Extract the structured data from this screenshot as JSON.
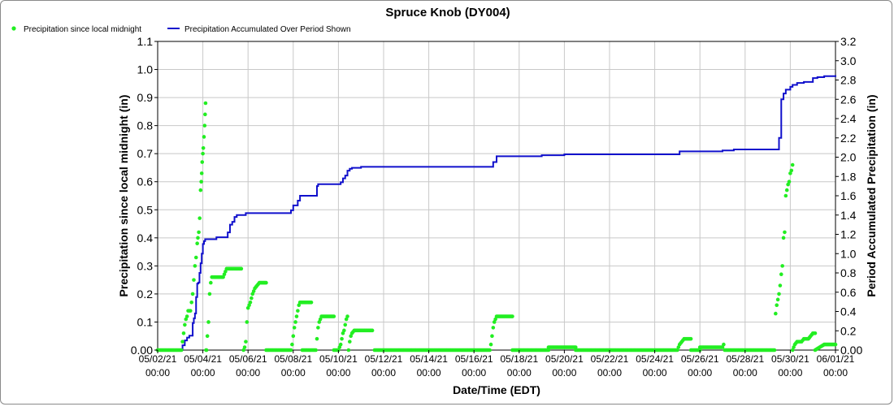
{
  "chart_data": {
    "type": "scatter+line",
    "title": "Spruce Knob (DY004)",
    "xlabel": "Date/Time (EDT)",
    "ylabel_left": "Precipitation since local midnight (in)",
    "ylabel_right": "Period Accumulated Precipitation (in)",
    "x_range": [
      "05/02/21 00:00",
      "06/01/21 00:00"
    ],
    "x_ticks": [
      {
        "line1": "05/02/21",
        "line2": "00:00",
        "day": 0
      },
      {
        "line1": "05/04/21",
        "line2": "00:00",
        "day": 2
      },
      {
        "line1": "05/06/21",
        "line2": "00:00",
        "day": 4
      },
      {
        "line1": "05/08/21",
        "line2": "00:00",
        "day": 6
      },
      {
        "line1": "05/10/21",
        "line2": "00:00",
        "day": 8
      },
      {
        "line1": "05/12/21",
        "line2": "00:00",
        "day": 10
      },
      {
        "line1": "05/14/21",
        "line2": "00:00",
        "day": 12
      },
      {
        "line1": "05/16/21",
        "line2": "00:00",
        "day": 14
      },
      {
        "line1": "05/18/21",
        "line2": "00:00",
        "day": 16
      },
      {
        "line1": "05/20/21",
        "line2": "00:00",
        "day": 18
      },
      {
        "line1": "05/22/21",
        "line2": "00:00",
        "day": 20
      },
      {
        "line1": "05/24/21",
        "line2": "00:00",
        "day": 22
      },
      {
        "line1": "05/26/21",
        "line2": "00:00",
        "day": 24
      },
      {
        "line1": "05/28/21",
        "line2": "00:00",
        "day": 26
      },
      {
        "line1": "05/30/21",
        "line2": "00:00",
        "day": 28
      },
      {
        "line1": "06/01/21",
        "line2": "00:00",
        "day": 30
      }
    ],
    "y_left_range": [
      0,
      1.1
    ],
    "y_left_ticks": [
      "0.00",
      "0.1",
      "0.2",
      "0.3",
      "0.4",
      "0.5",
      "0.6",
      "0.7",
      "0.8",
      "0.9",
      "1.0",
      "1.1"
    ],
    "y_right_range": [
      0,
      3.2
    ],
    "y_right_ticks": [
      "0.00",
      "0.2",
      "0.4",
      "0.6",
      "0.8",
      "1.0",
      "1.2",
      "1.4",
      "1.6",
      "1.8",
      "2.0",
      "2.2",
      "2.4",
      "2.6",
      "2.8",
      "3.0",
      "3.2"
    ],
    "grid": true,
    "legend_position": "top-left",
    "legend": [
      "Precipitation since local midnight",
      "Precipitation Accumulated Over Period Shown"
    ],
    "colors": {
      "daily": "#22ee22",
      "accumulated": "#1010cc"
    },
    "series_daily": {
      "name": "Precipitation since local midnight",
      "axis": "left",
      "segments": [
        [
          [
            0,
            0
          ],
          [
            1.05,
            0
          ],
          [
            1.1,
            0.03
          ],
          [
            1.15,
            0.06
          ],
          [
            1.2,
            0.09
          ],
          [
            1.25,
            0.11
          ],
          [
            1.3,
            0.12
          ],
          [
            1.35,
            0.14
          ],
          [
            1.45,
            0.14
          ],
          [
            1.5,
            0.17
          ],
          [
            1.55,
            0.2
          ],
          [
            1.6,
            0.25
          ],
          [
            1.65,
            0.3
          ],
          [
            1.7,
            0.33
          ],
          [
            1.75,
            0.38
          ],
          [
            1.78,
            0.4
          ],
          [
            1.82,
            0.42
          ],
          [
            1.86,
            0.47
          ],
          [
            1.9,
            0.57
          ],
          [
            1.93,
            0.6
          ],
          [
            1.95,
            0.63
          ],
          [
            1.97,
            0.67
          ],
          [
            2.0,
            0.7
          ],
          [
            2.02,
            0.72
          ],
          [
            2.05,
            0.76
          ],
          [
            2.08,
            0.8
          ],
          [
            2.1,
            0.84
          ],
          [
            2.12,
            0.88
          ],
          [
            2.14,
            0.0
          ]
        ],
        [
          [
            2.16,
            0.0
          ],
          [
            2.2,
            0.05
          ],
          [
            2.25,
            0.1
          ],
          [
            2.3,
            0.2
          ],
          [
            2.35,
            0.24
          ],
          [
            2.4,
            0.26
          ],
          [
            2.9,
            0.26
          ]
        ],
        [
          [
            2.95,
            0.27
          ],
          [
            3.05,
            0.29
          ],
          [
            3.7,
            0.29
          ]
        ],
        [
          [
            3.8,
            0
          ],
          [
            3.85,
            0.01
          ],
          [
            3.9,
            0.03
          ],
          [
            3.95,
            0.1
          ],
          [
            4.0,
            0.15
          ],
          [
            4.05,
            0.16
          ],
          [
            4.1,
            0.17
          ],
          [
            4.2,
            0.2
          ],
          [
            4.3,
            0.22
          ],
          [
            4.4,
            0.23
          ],
          [
            4.5,
            0.24
          ],
          [
            4.8,
            0.24
          ]
        ],
        [
          [
            4.8,
            0
          ],
          [
            5.9,
            0
          ],
          [
            5.95,
            0.02
          ],
          [
            6.0,
            0.05
          ],
          [
            6.05,
            0.08
          ],
          [
            6.1,
            0.1
          ],
          [
            6.15,
            0.12
          ],
          [
            6.2,
            0.14
          ],
          [
            6.25,
            0.16
          ],
          [
            6.3,
            0.17
          ],
          [
            6.8,
            0.17
          ]
        ],
        [
          [
            6.4,
            0
          ],
          [
            7.0,
            0
          ],
          [
            7.05,
            0.04
          ],
          [
            7.1,
            0.08
          ],
          [
            7.15,
            0.1
          ],
          [
            7.2,
            0.11
          ],
          [
            7.25,
            0.12
          ],
          [
            7.8,
            0.12
          ]
        ],
        [
          [
            7.8,
            0
          ],
          [
            8.0,
            0
          ],
          [
            8.05,
            0.01
          ],
          [
            8.1,
            0.02
          ],
          [
            8.15,
            0.04
          ],
          [
            8.2,
            0.06
          ],
          [
            8.25,
            0.07
          ],
          [
            8.3,
            0.09
          ],
          [
            8.35,
            0.11
          ],
          [
            8.4,
            0.12
          ],
          [
            8.45,
            0.0
          ]
        ],
        [
          [
            8.5,
            0.03
          ],
          [
            8.55,
            0.05
          ],
          [
            8.6,
            0.06
          ],
          [
            8.7,
            0.07
          ],
          [
            9.5,
            0.07
          ]
        ],
        [
          [
            9.6,
            0
          ],
          [
            14.7,
            0
          ],
          [
            14.75,
            0.02
          ],
          [
            14.8,
            0.05
          ],
          [
            14.85,
            0.08
          ],
          [
            14.9,
            0.1
          ],
          [
            14.95,
            0.11
          ],
          [
            15.0,
            0.12
          ],
          [
            15.7,
            0.12
          ]
        ],
        [
          [
            15.7,
            0
          ],
          [
            17.3,
            0
          ],
          [
            17.3,
            0.01
          ],
          [
            18.5,
            0.01
          ],
          [
            18.5,
            0
          ],
          [
            23.0,
            0
          ],
          [
            23.05,
            0.01
          ],
          [
            23.1,
            0.02
          ],
          [
            23.2,
            0.03
          ],
          [
            23.3,
            0.04
          ],
          [
            23.6,
            0.04
          ]
        ],
        [
          [
            23.6,
            0
          ],
          [
            24.0,
            0
          ],
          [
            24.0,
            0.01
          ],
          [
            25.0,
            0.01
          ],
          [
            25.05,
            0.02
          ],
          [
            25.1,
            0.0
          ],
          [
            27.3,
            0
          ],
          [
            27.35,
            0.13
          ],
          [
            27.4,
            0.16
          ],
          [
            27.45,
            0.18
          ],
          [
            27.5,
            0.2
          ],
          [
            27.55,
            0.23
          ],
          [
            27.6,
            0.27
          ],
          [
            27.65,
            0.3
          ],
          [
            27.7,
            0.4
          ],
          [
            27.75,
            0.42
          ],
          [
            27.8,
            0.55
          ],
          [
            27.85,
            0.57
          ],
          [
            27.9,
            0.59
          ],
          [
            27.95,
            0.6
          ],
          [
            28.0,
            0.63
          ],
          [
            28.05,
            0.64
          ],
          [
            28.1,
            0.66
          ]
        ],
        [
          [
            28.1,
            0
          ],
          [
            28.2,
            0.02
          ],
          [
            28.3,
            0.03
          ],
          [
            28.5,
            0.03
          ],
          [
            28.6,
            0.04
          ],
          [
            28.8,
            0.04
          ],
          [
            28.9,
            0.05
          ],
          [
            29.0,
            0.06
          ],
          [
            29.1,
            0.06
          ]
        ],
        [
          [
            29.1,
            0
          ],
          [
            29.3,
            0.01
          ],
          [
            29.5,
            0.02
          ],
          [
            30.0,
            0.02
          ],
          [
            30.1,
            0.03
          ],
          [
            30.2,
            0.04
          ],
          [
            30.3,
            0.0
          ],
          [
            32.0,
            0
          ]
        ]
      ]
    },
    "series_accumulated": {
      "name": "Precipitation Accumulated Over Period Shown",
      "axis": "right",
      "points": [
        [
          0,
          0
        ],
        [
          1.05,
          0
        ],
        [
          1.1,
          0.05
        ],
        [
          1.2,
          0.1
        ],
        [
          1.3,
          0.13
        ],
        [
          1.4,
          0.15
        ],
        [
          1.5,
          0.15
        ],
        [
          1.55,
          0.28
        ],
        [
          1.6,
          0.33
        ],
        [
          1.65,
          0.38
        ],
        [
          1.7,
          0.55
        ],
        [
          1.75,
          0.69
        ],
        [
          1.8,
          0.7
        ],
        [
          1.85,
          0.8
        ],
        [
          1.9,
          0.9
        ],
        [
          1.95,
          1.0
        ],
        [
          2.0,
          1.1
        ],
        [
          2.05,
          1.13
        ],
        [
          2.1,
          1.15
        ],
        [
          2.6,
          1.17
        ],
        [
          2.8,
          1.17
        ],
        [
          3.0,
          1.17
        ],
        [
          3.1,
          1.22
        ],
        [
          3.2,
          1.3
        ],
        [
          3.3,
          1.33
        ],
        [
          3.4,
          1.38
        ],
        [
          3.5,
          1.4
        ],
        [
          3.7,
          1.4
        ],
        [
          3.9,
          1.42
        ],
        [
          4.5,
          1.42
        ],
        [
          5.8,
          1.42
        ],
        [
          5.9,
          1.45
        ],
        [
          6.0,
          1.5
        ],
        [
          6.2,
          1.55
        ],
        [
          6.3,
          1.6
        ],
        [
          6.5,
          1.6
        ],
        [
          7.0,
          1.6
        ],
        [
          7.05,
          1.7
        ],
        [
          7.1,
          1.72
        ],
        [
          7.8,
          1.72
        ],
        [
          8.1,
          1.74
        ],
        [
          8.2,
          1.78
        ],
        [
          8.3,
          1.81
        ],
        [
          8.4,
          1.86
        ],
        [
          8.5,
          1.88
        ],
        [
          8.6,
          1.89
        ],
        [
          9.0,
          1.9
        ],
        [
          14.8,
          1.9
        ],
        [
          14.85,
          1.95
        ],
        [
          15.0,
          2.01
        ],
        [
          15.5,
          2.01
        ],
        [
          17.0,
          2.02
        ],
        [
          18.0,
          2.03
        ],
        [
          22.0,
          2.03
        ],
        [
          23.1,
          2.06
        ],
        [
          24.0,
          2.06
        ],
        [
          25.0,
          2.07
        ],
        [
          25.5,
          2.08
        ],
        [
          27.4,
          2.08
        ],
        [
          27.5,
          2.2
        ],
        [
          27.6,
          2.6
        ],
        [
          27.7,
          2.66
        ],
        [
          27.8,
          2.7
        ],
        [
          28.0,
          2.73
        ],
        [
          28.1,
          2.75
        ],
        [
          28.3,
          2.77
        ],
        [
          28.6,
          2.78
        ],
        [
          29.0,
          2.82
        ],
        [
          29.2,
          2.83
        ],
        [
          29.5,
          2.84
        ],
        [
          30.0,
          2.85
        ]
      ]
    }
  }
}
